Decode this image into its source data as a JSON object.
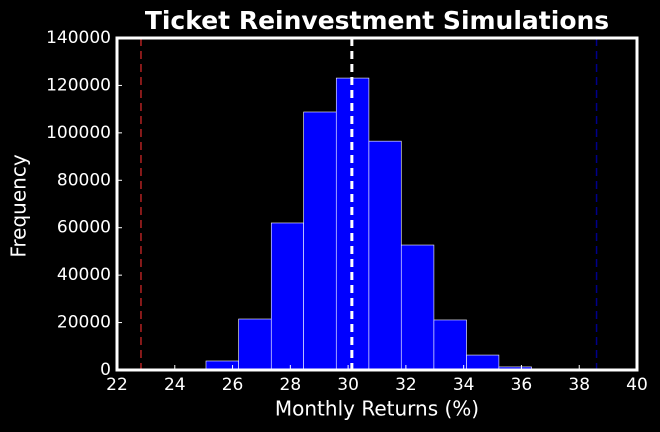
{
  "chart_data": {
    "type": "histogram",
    "title": "Ticket Reinvestment Simulations",
    "xlabel": "Monthly Returns (%)",
    "ylabel": "Frequency",
    "bins": [
      22.83,
      23.96,
      25.08,
      26.21,
      27.34,
      28.46,
      29.59,
      30.72,
      31.84,
      32.97,
      34.1,
      35.22,
      36.35,
      37.48,
      38.6
    ],
    "values": [
      5,
      200,
      3800,
      21500,
      62000,
      108800,
      123100,
      96500,
      52700,
      21100,
      6300,
      1300,
      100,
      10
    ],
    "color": "#0000ff",
    "vlines": [
      {
        "x": 22.83,
        "color": "#b22222"
      },
      {
        "x": 30.13,
        "color": "#ffffff"
      },
      {
        "x": 38.6,
        "color": "#00008b"
      }
    ],
    "xlim": [
      22,
      40
    ],
    "xticks": [
      22,
      24,
      26,
      28,
      30,
      32,
      34,
      36,
      38,
      40
    ],
    "ylim": [
      0,
      140000
    ],
    "yticks": [
      0,
      20000,
      40000,
      60000,
      80000,
      100000,
      120000,
      140000
    ]
  }
}
